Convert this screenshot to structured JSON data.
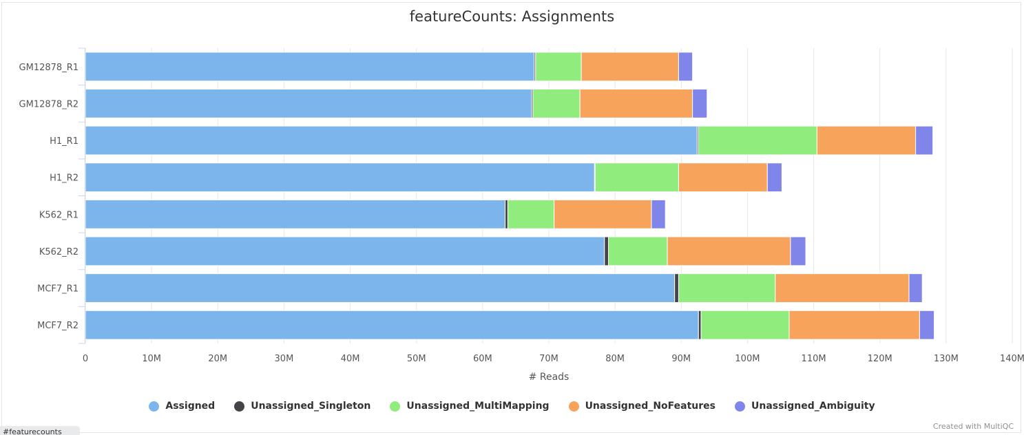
{
  "url_status": "#featurecounts",
  "credit": "Created with MultiQC",
  "chart_data": {
    "type": "bar",
    "orientation": "horizontal",
    "stacked": true,
    "title": "featureCounts: Assignments",
    "xlabel": "# Reads",
    "ylabel": "",
    "xlim": [
      0,
      140000000
    ],
    "x_ticks": [
      {
        "value": 0,
        "label": "0"
      },
      {
        "value": 10000000,
        "label": "10M"
      },
      {
        "value": 20000000,
        "label": "20M"
      },
      {
        "value": 30000000,
        "label": "30M"
      },
      {
        "value": 40000000,
        "label": "40M"
      },
      {
        "value": 50000000,
        "label": "50M"
      },
      {
        "value": 60000000,
        "label": "60M"
      },
      {
        "value": 70000000,
        "label": "70M"
      },
      {
        "value": 80000000,
        "label": "80M"
      },
      {
        "value": 90000000,
        "label": "90M"
      },
      {
        "value": 100000000,
        "label": "100M"
      },
      {
        "value": 110000000,
        "label": "110M"
      },
      {
        "value": 120000000,
        "label": "120M"
      },
      {
        "value": 130000000,
        "label": "130M"
      },
      {
        "value": 140000000,
        "label": "140M"
      }
    ],
    "grid": true,
    "legend_position": "bottom",
    "categories": [
      "GM12878_R1",
      "GM12878_R2",
      "H1_R1",
      "H1_R2",
      "K562_R1",
      "K562_R2",
      "MCF7_R1",
      "MCF7_R2"
    ],
    "series": [
      {
        "name": "Assigned",
        "color": "#7cb5ec",
        "values": [
          67800000,
          67400000,
          92400000,
          76900000,
          63400000,
          78400000,
          89000000,
          92600000
        ]
      },
      {
        "name": "Unassigned_Singleton",
        "color": "#434348",
        "values": [
          200000,
          200000,
          200000,
          100000,
          400000,
          600000,
          600000,
          400000
        ]
      },
      {
        "name": "Unassigned_MultiMapping",
        "color": "#90ed7d",
        "values": [
          6900000,
          7100000,
          17900000,
          12600000,
          7000000,
          8900000,
          14600000,
          13300000
        ]
      },
      {
        "name": "Unassigned_NoFeatures",
        "color": "#f7a35c",
        "values": [
          14700000,
          17000000,
          14900000,
          13400000,
          14700000,
          18600000,
          20200000,
          19700000
        ]
      },
      {
        "name": "Unassigned_Ambiguity",
        "color": "#8085e9",
        "values": [
          2100000,
          2200000,
          2600000,
          2200000,
          2100000,
          2300000,
          2000000,
          2200000
        ]
      }
    ]
  }
}
